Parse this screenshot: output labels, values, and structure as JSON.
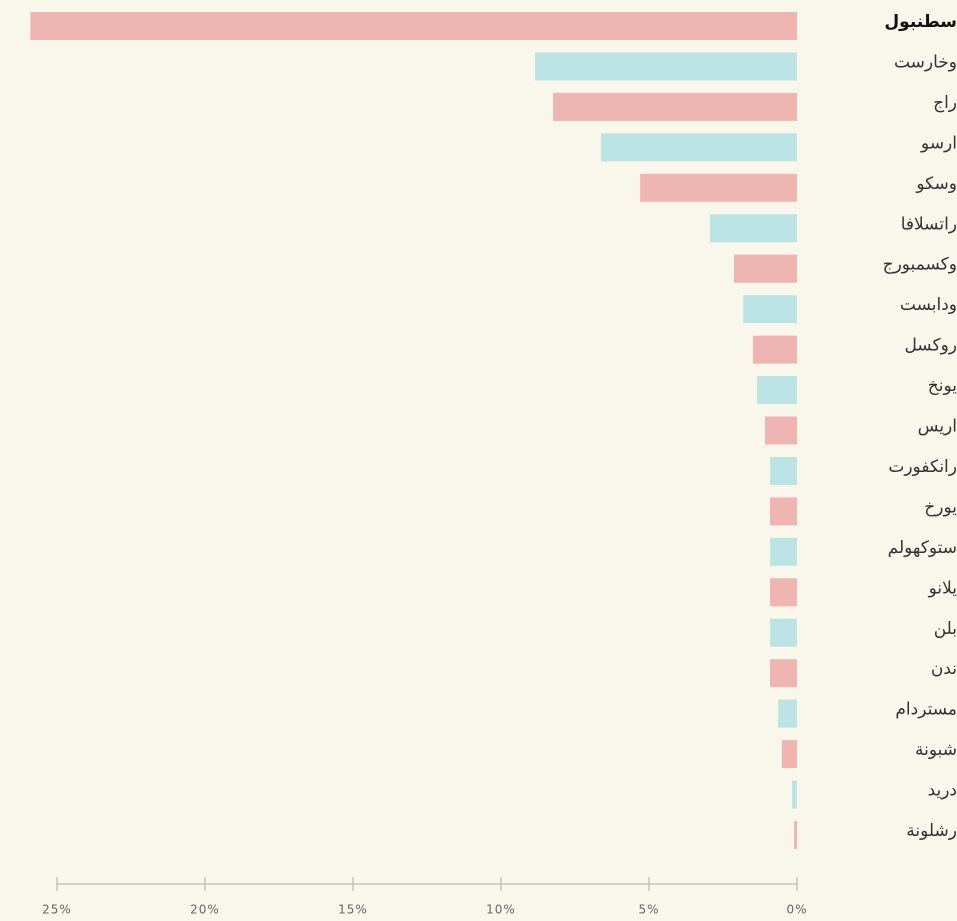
{
  "chart_data": {
    "type": "bar",
    "categories": [
      "سطنبول",
      "وخارست",
      "راج",
      "ارسو",
      "وسكو",
      "راتسلافا",
      "وكسمبورج",
      "ودابست",
      "روكسل",
      "يونخ",
      "اريس",
      "رانكفورت",
      "يورخ",
      "ستوكهولم",
      "يلانو",
      "بلن",
      "ندن",
      "مستردام",
      "شبونة",
      "دريد",
      "رشلونة"
    ],
    "values": [
      25.9,
      8.85,
      8.24,
      6.62,
      5.3,
      2.94,
      2.13,
      1.82,
      1.49,
      1.35,
      1.08,
      0.91,
      0.91,
      0.91,
      0.91,
      0.91,
      0.91,
      0.64,
      0.51,
      0.17,
      0.1
    ],
    "colors": [
      "#efb5b3",
      "#bce3e3",
      "#efb5b3",
      "#bce3e3",
      "#efb5b3",
      "#bce3e3",
      "#efb5b3",
      "#bce3e3",
      "#efb5b3",
      "#bce3e3",
      "#efb5b3",
      "#bce3e3",
      "#efb5b3",
      "#bce3e3",
      "#efb5b3",
      "#bce3e3",
      "#efb5b3",
      "#bce3e3",
      "#efb5b3",
      "#bce3e3",
      "#efb5b3"
    ],
    "xlim": [
      0,
      25
    ],
    "xticks": [
      {
        "value": 25,
        "label": "25%"
      },
      {
        "value": 20,
        "label": "20%"
      },
      {
        "value": 15,
        "label": "15%"
      },
      {
        "value": 10,
        "label": "10%"
      },
      {
        "value": 5,
        "label": "5%"
      },
      {
        "value": 0,
        "label": "0%"
      }
    ]
  }
}
